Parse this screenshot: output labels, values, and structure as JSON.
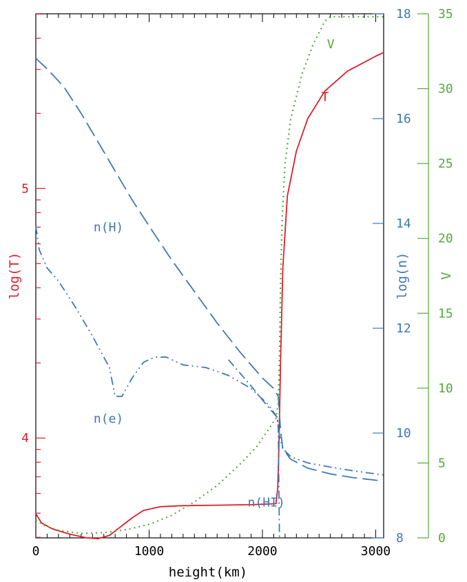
{
  "colors": {
    "red": "#dd1c2a",
    "blue": "#3d78b4",
    "green": "#55a83a",
    "axis": "#000000"
  },
  "chart_data": {
    "type": "line",
    "xlabel": "height(km)",
    "xlim": [
      0,
      3070
    ],
    "xticks": [
      "0",
      "1000",
      "2000",
      "3000"
    ],
    "axes": {
      "logT": {
        "label": "log(T)",
        "lim": [
          3.6,
          5.7
        ],
        "ticks": [
          "4",
          "5"
        ],
        "color": "red"
      },
      "logn": {
        "label": "log(n)",
        "lim": [
          8,
          18
        ],
        "ticks": [
          "8",
          "10",
          "12",
          "14",
          "16",
          "18"
        ],
        "color": "blue"
      },
      "v": {
        "label": "V",
        "lim": [
          0,
          35
        ],
        "ticks": [
          "0",
          "5",
          "10",
          "15",
          "20",
          "25",
          "30",
          "35"
        ],
        "color": "green"
      }
    },
    "series": [
      {
        "name": "T",
        "axis": "logT",
        "color": "red",
        "style": "solid",
        "points": [
          [
            0,
            3.697
          ],
          [
            50,
            3.66
          ],
          [
            150,
            3.635
          ],
          [
            300,
            3.615
          ],
          [
            450,
            3.6
          ],
          [
            550,
            3.597
          ],
          [
            650,
            3.61
          ],
          [
            750,
            3.645
          ],
          [
            850,
            3.68
          ],
          [
            950,
            3.71
          ],
          [
            1100,
            3.725
          ],
          [
            1300,
            3.729
          ],
          [
            1600,
            3.731
          ],
          [
            1900,
            3.733
          ],
          [
            2120,
            3.737
          ],
          [
            2135,
            3.8
          ],
          [
            2145,
            3.95
          ],
          [
            2160,
            4.3
          ],
          [
            2180,
            4.68
          ],
          [
            2220,
            4.97
          ],
          [
            2300,
            5.15
          ],
          [
            2400,
            5.28
          ],
          [
            2550,
            5.39
          ],
          [
            2750,
            5.47
          ],
          [
            3000,
            5.53
          ],
          [
            3070,
            5.545
          ]
        ]
      },
      {
        "name": "n(H)",
        "axis": "logn",
        "color": "blue",
        "style": "longdash",
        "points": [
          [
            0,
            17.15
          ],
          [
            100,
            16.95
          ],
          [
            250,
            16.6
          ],
          [
            400,
            16.1
          ],
          [
            550,
            15.55
          ],
          [
            700,
            15.0
          ],
          [
            850,
            14.45
          ],
          [
            1000,
            13.95
          ],
          [
            1200,
            13.3
          ],
          [
            1400,
            12.7
          ],
          [
            1600,
            12.1
          ],
          [
            1800,
            11.55
          ],
          [
            2000,
            11.05
          ],
          [
            2100,
            10.85
          ],
          [
            2140,
            10.7
          ],
          [
            2160,
            10.05
          ],
          [
            2180,
            9.7
          ],
          [
            2250,
            9.5
          ],
          [
            2400,
            9.33
          ],
          [
            2600,
            9.22
          ],
          [
            2800,
            9.15
          ],
          [
            3000,
            9.1
          ],
          [
            3070,
            9.08
          ]
        ]
      },
      {
        "name": "n(e)",
        "axis": "logn",
        "color": "blue",
        "style": "dashdotdot",
        "points": [
          [
            0,
            13.95
          ],
          [
            30,
            13.5
          ],
          [
            100,
            13.15
          ],
          [
            200,
            12.9
          ],
          [
            350,
            12.4
          ],
          [
            500,
            11.85
          ],
          [
            650,
            11.25
          ],
          [
            700,
            10.7
          ],
          [
            760,
            10.7
          ],
          [
            850,
            11.05
          ],
          [
            950,
            11.35
          ],
          [
            1050,
            11.45
          ],
          [
            1150,
            11.45
          ],
          [
            1300,
            11.3
          ],
          [
            1500,
            11.25
          ],
          [
            1700,
            11.1
          ],
          [
            1900,
            10.85
          ],
          [
            2050,
            10.55
          ],
          [
            2130,
            10.3
          ],
          [
            2150,
            9.95
          ],
          [
            2180,
            9.7
          ],
          [
            2250,
            9.55
          ],
          [
            2400,
            9.43
          ],
          [
            2600,
            9.35
          ],
          [
            2800,
            9.28
          ],
          [
            3070,
            9.2
          ]
        ]
      },
      {
        "name": "n(HI)",
        "axis": "logn",
        "color": "blue",
        "style": "dashdot",
        "points": [
          [
            1700,
            11.4
          ],
          [
            1900,
            10.9
          ],
          [
            2050,
            10.5
          ],
          [
            2110,
            10.35
          ],
          [
            2130,
            10.3
          ],
          [
            2140,
            10.1
          ],
          [
            2150,
            8.0
          ]
        ]
      },
      {
        "name": "V",
        "axis": "v",
        "color": "green",
        "style": "dotted",
        "points": [
          [
            0,
            1.2
          ],
          [
            80,
            0.8
          ],
          [
            200,
            0.5
          ],
          [
            400,
            0.3
          ],
          [
            600,
            0.35
          ],
          [
            800,
            0.55
          ],
          [
            1000,
            0.9
          ],
          [
            1200,
            1.5
          ],
          [
            1400,
            2.4
          ],
          [
            1600,
            3.5
          ],
          [
            1800,
            4.9
          ],
          [
            1950,
            6.1
          ],
          [
            2050,
            7.2
          ],
          [
            2120,
            8.0
          ],
          [
            2140,
            9.0
          ],
          [
            2150,
            12.0
          ],
          [
            2160,
            17.0
          ],
          [
            2175,
            21.5
          ],
          [
            2200,
            25.0
          ],
          [
            2250,
            28.0
          ],
          [
            2350,
            31.0
          ],
          [
            2450,
            33.0
          ],
          [
            2550,
            34.5
          ],
          [
            2600,
            34.8
          ],
          [
            3070,
            34.8
          ]
        ]
      }
    ],
    "annotations": [
      {
        "text": "V",
        "color": "green",
        "x": 2570,
        "axis": "v",
        "y": 32.7
      },
      {
        "text": "T",
        "color": "red",
        "x": 2520,
        "axis": "logT",
        "y": 5.35
      },
      {
        "text": "n(H)",
        "color": "blue",
        "x": 510,
        "axis": "logn",
        "y": 13.85
      },
      {
        "text": "n(e)",
        "color": "blue",
        "x": 510,
        "axis": "logn",
        "y": 10.2
      },
      {
        "text": "n(HI)",
        "color": "blue",
        "x": 1870,
        "axis": "logn",
        "y": 8.6
      }
    ]
  }
}
